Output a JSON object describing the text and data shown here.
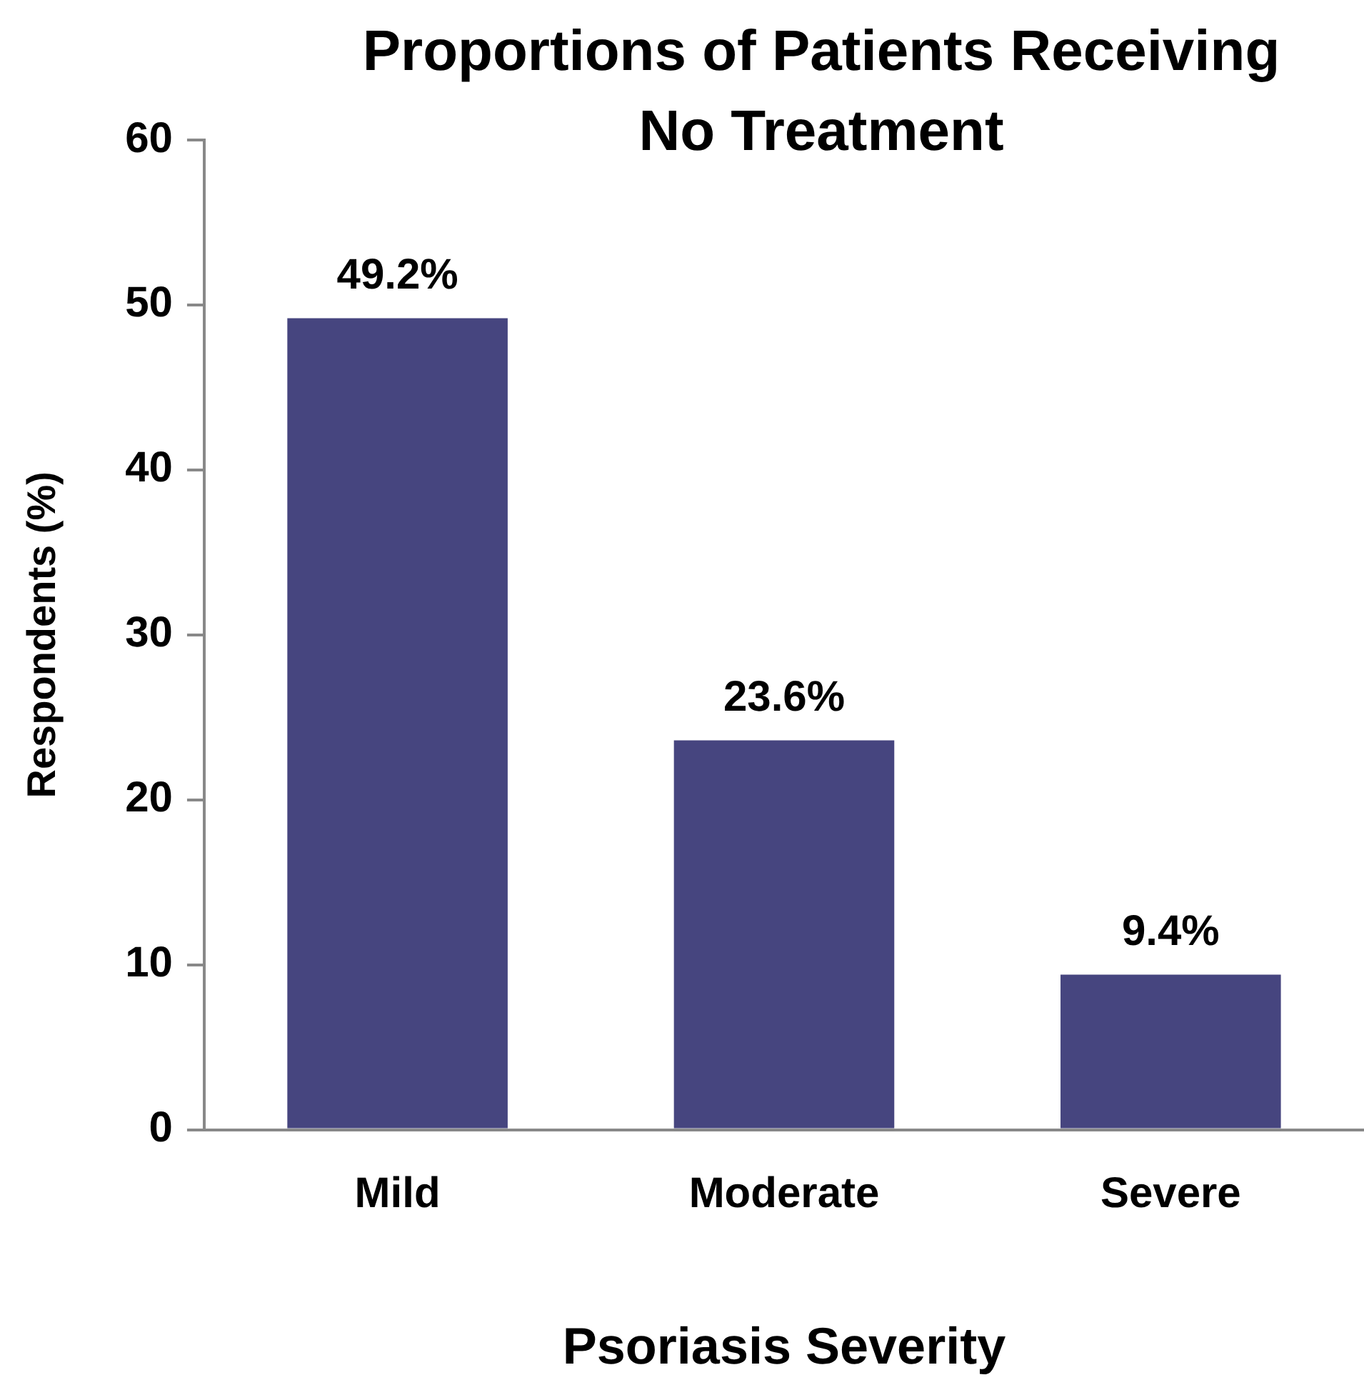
{
  "chart_data": {
    "type": "bar",
    "title": "Proportions of Patients Receiving No Treatment",
    "xlabel": "Psoriasis Severity",
    "ylabel": "Respondents (%)",
    "categories": [
      "Mild",
      "Moderate",
      "Severe"
    ],
    "values": [
      49.2,
      23.6,
      9.4
    ],
    "value_labels": [
      "49.2%",
      "23.6%",
      "9.4%"
    ],
    "color": "#46457f",
    "ylim": [
      0,
      60
    ],
    "yticks": [
      0,
      10,
      20,
      30,
      40,
      50,
      60
    ],
    "grid": false,
    "legend": false
  }
}
